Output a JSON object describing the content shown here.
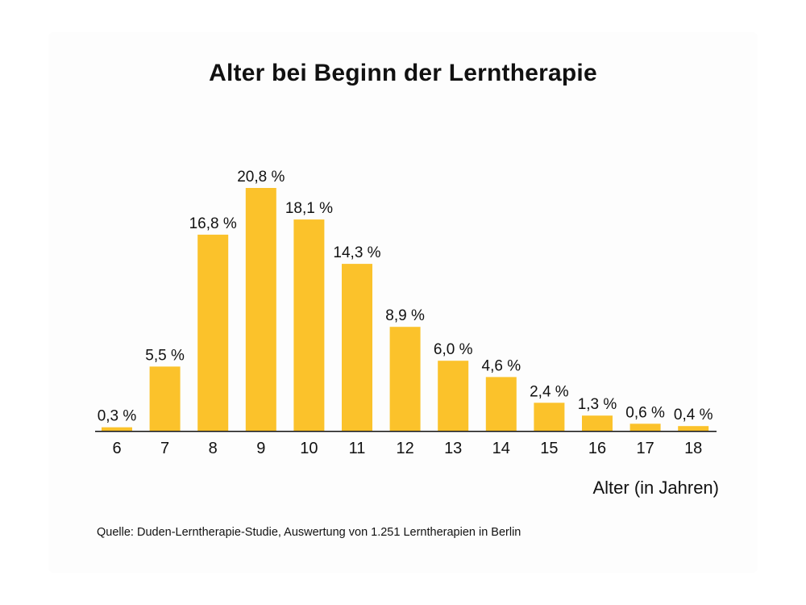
{
  "chart_data": {
    "type": "bar",
    "title": "Alter bei Beginn der Lerntherapie",
    "xlabel": "Alter (in Jahren)",
    "ylabel": "",
    "categories": [
      "6",
      "7",
      "8",
      "9",
      "10",
      "11",
      "12",
      "13",
      "14",
      "15",
      "16",
      "17",
      "18"
    ],
    "values": [
      0.3,
      5.5,
      16.8,
      20.8,
      18.1,
      14.3,
      8.9,
      6.0,
      4.6,
      2.4,
      1.3,
      0.6,
      0.4
    ],
    "value_labels": [
      "0,3 %",
      "5,5 %",
      "16,8 %",
      "20,8 %",
      "18,1 %",
      "14,3 %",
      "8,9 %",
      "6,0 %",
      "4,6 %",
      "2,4 %",
      "1,3 %",
      "0,6 %",
      "0,4 %"
    ],
    "ylim": [
      0,
      20.8
    ],
    "grid": false,
    "legend": "none",
    "bar_color": "#FBC22B",
    "source": "Quelle: Duden-Lerntherapie-Studie, Auswertung von 1.251 Lerntherapien in Berlin"
  }
}
